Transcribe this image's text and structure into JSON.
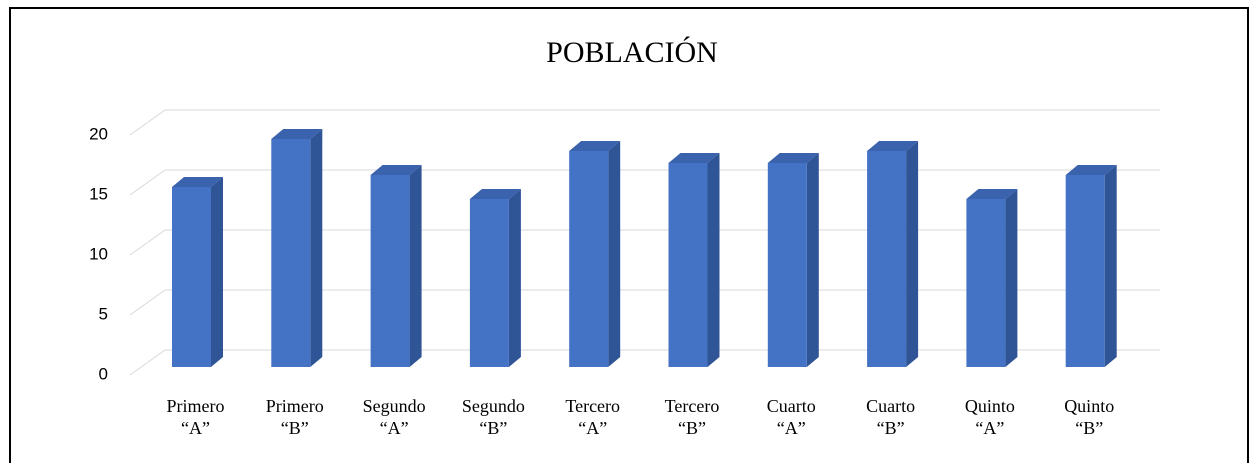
{
  "chart_data": {
    "type": "bar3d",
    "title": "POBLACIÓN",
    "categories": [
      [
        "Primero",
        "“A”"
      ],
      [
        "Primero",
        "“B”"
      ],
      [
        "Segundo",
        "“A”"
      ],
      [
        "Segundo",
        "“B”"
      ],
      [
        "Tercero",
        "“A”"
      ],
      [
        "Tercero",
        "“B”"
      ],
      [
        "Cuarto",
        "“A”"
      ],
      [
        "Cuarto",
        "“B”"
      ],
      [
        "Quinto",
        "“A”"
      ],
      [
        "Quinto",
        "“B”"
      ]
    ],
    "values": [
      15,
      19,
      16,
      14,
      18,
      17,
      17,
      18,
      14,
      16
    ],
    "color": "#4472c4",
    "ylim": [
      0,
      20
    ],
    "yticks": [
      0,
      5,
      10,
      15,
      20
    ],
    "grid": true
  }
}
